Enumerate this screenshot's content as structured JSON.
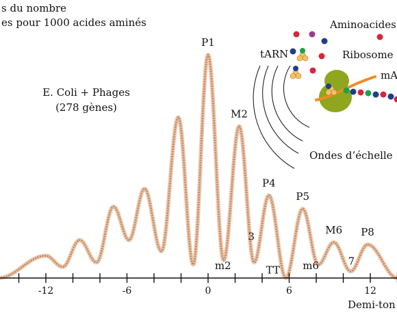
{
  "header": {
    "line1": "s du nombre",
    "line2": "es pour 1000 acides aminés"
  },
  "chart_data": {
    "type": "line",
    "title": "",
    "subtitle_line1": "E. Coli + Phages",
    "subtitle_line2": "(278 gènes)",
    "xlabel": "Demi-ton",
    "ylabel": "",
    "xlim": [
      -15.5,
      14
    ],
    "x_ticks": [
      -12,
      -6,
      0,
      6,
      12
    ],
    "x_tick_labels": [
      "-12",
      "-6",
      "0",
      "6",
      "12"
    ],
    "minor_ticks": [
      -14,
      -10,
      -8,
      -4,
      -2,
      2,
      4,
      8,
      10,
      14
    ],
    "curve_color": "#c8875e",
    "series": [
      {
        "peaks_x": [
          -12,
          -9.5,
          -7,
          -4.7,
          -2.2,
          0,
          2.3,
          4.5,
          7,
          9.3,
          11.8
        ],
        "peaks_y": [
          0.1,
          0.17,
          0.32,
          0.4,
          0.72,
          1.0,
          0.68,
          0.37,
          0.31,
          0.16,
          0.15
        ],
        "trough_y": [
          0.0,
          0.05,
          0.07,
          0.17,
          0.12,
          0.06,
          0.08,
          0.07,
          0.0,
          0.06,
          0.03,
          0.0
        ]
      }
    ],
    "annotations": [
      {
        "text": "P1",
        "x": 0,
        "y": 1.04
      },
      {
        "text": "M2",
        "x": 2.3,
        "y": 0.72
      },
      {
        "text": "P4",
        "x": 4.5,
        "y": 0.41
      },
      {
        "text": "P5",
        "x": 7,
        "y": 0.35
      },
      {
        "text": "M6",
        "x": 9.3,
        "y": 0.2
      },
      {
        "text": "P8",
        "x": 11.8,
        "y": 0.19
      },
      {
        "text": "3",
        "x": 3.2,
        "y": 0.17
      },
      {
        "text": "7",
        "x": 10.6,
        "y": 0.06
      },
      {
        "text": "m2",
        "x": 1.1,
        "y": 0.04
      },
      {
        "text": "TT",
        "x": 4.8,
        "y": 0.02
      },
      {
        "text": "m6",
        "x": 7.6,
        "y": 0.04
      }
    ]
  },
  "inset": {
    "aminoacides": "Aminoacides",
    "tarn": "tARN",
    "ribosome": "Ribosome",
    "marn": "mA",
    "ondes": "Ondes d’échelle",
    "colors": {
      "ribosome": "#8fa61e",
      "marn": "#f08c1e",
      "trna": "#f4c26b",
      "bead_red": "#d8263a",
      "bead_blue": "#1d3f8c",
      "bead_green": "#1aa34a",
      "bead_purple": "#9a3c8c"
    }
  }
}
